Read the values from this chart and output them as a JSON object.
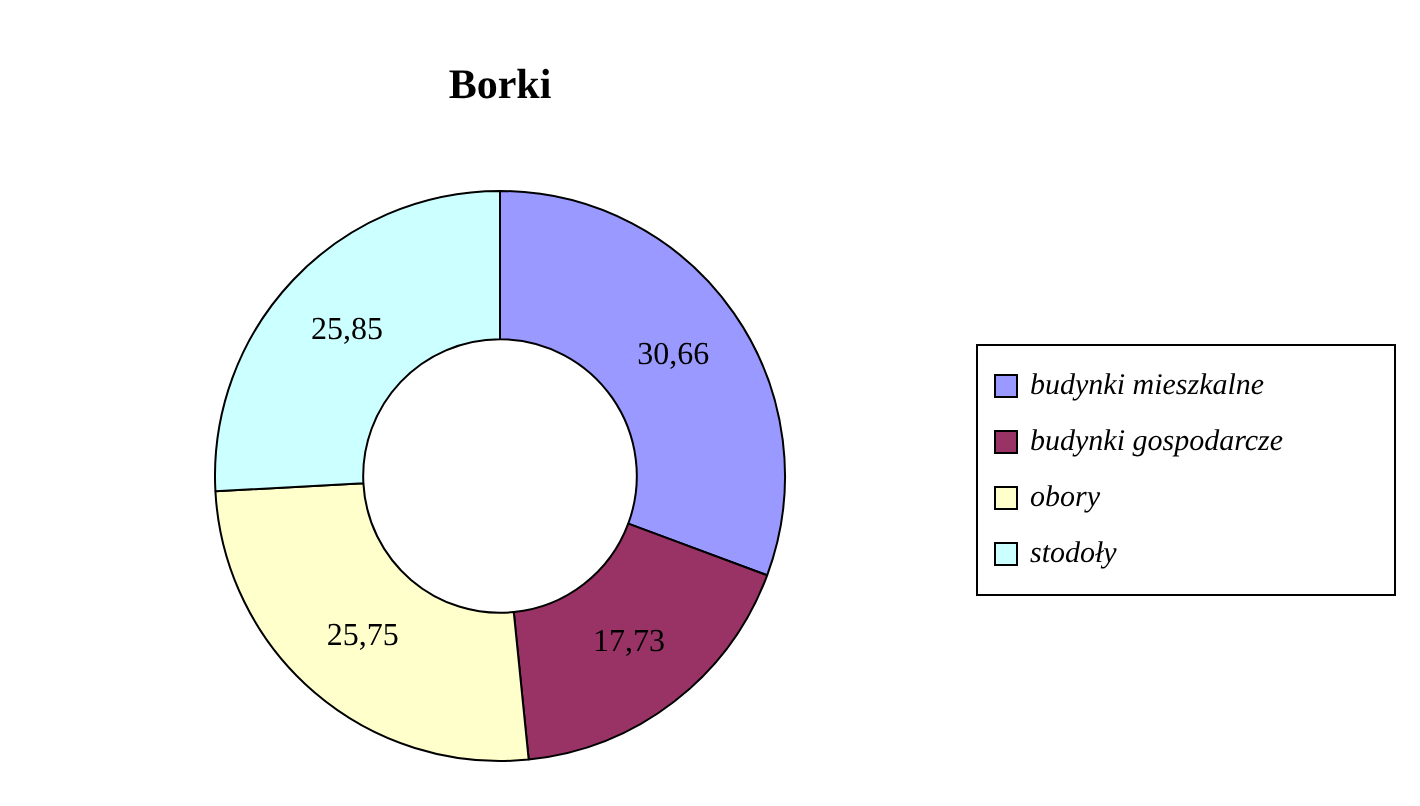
{
  "chart_data": {
    "type": "donut",
    "title": "Borki",
    "categories": [
      "budynki mieszkalne",
      "budynki gospodarcze",
      "obory",
      "stodoły"
    ],
    "values": [
      30.66,
      17.73,
      25.75,
      25.85
    ],
    "value_labels": [
      "30,66",
      "17,73",
      "25,75",
      "25,85"
    ],
    "colors": [
      "#9999ff",
      "#993366",
      "#ffffcc",
      "#ccffff"
    ],
    "legend": "right"
  }
}
